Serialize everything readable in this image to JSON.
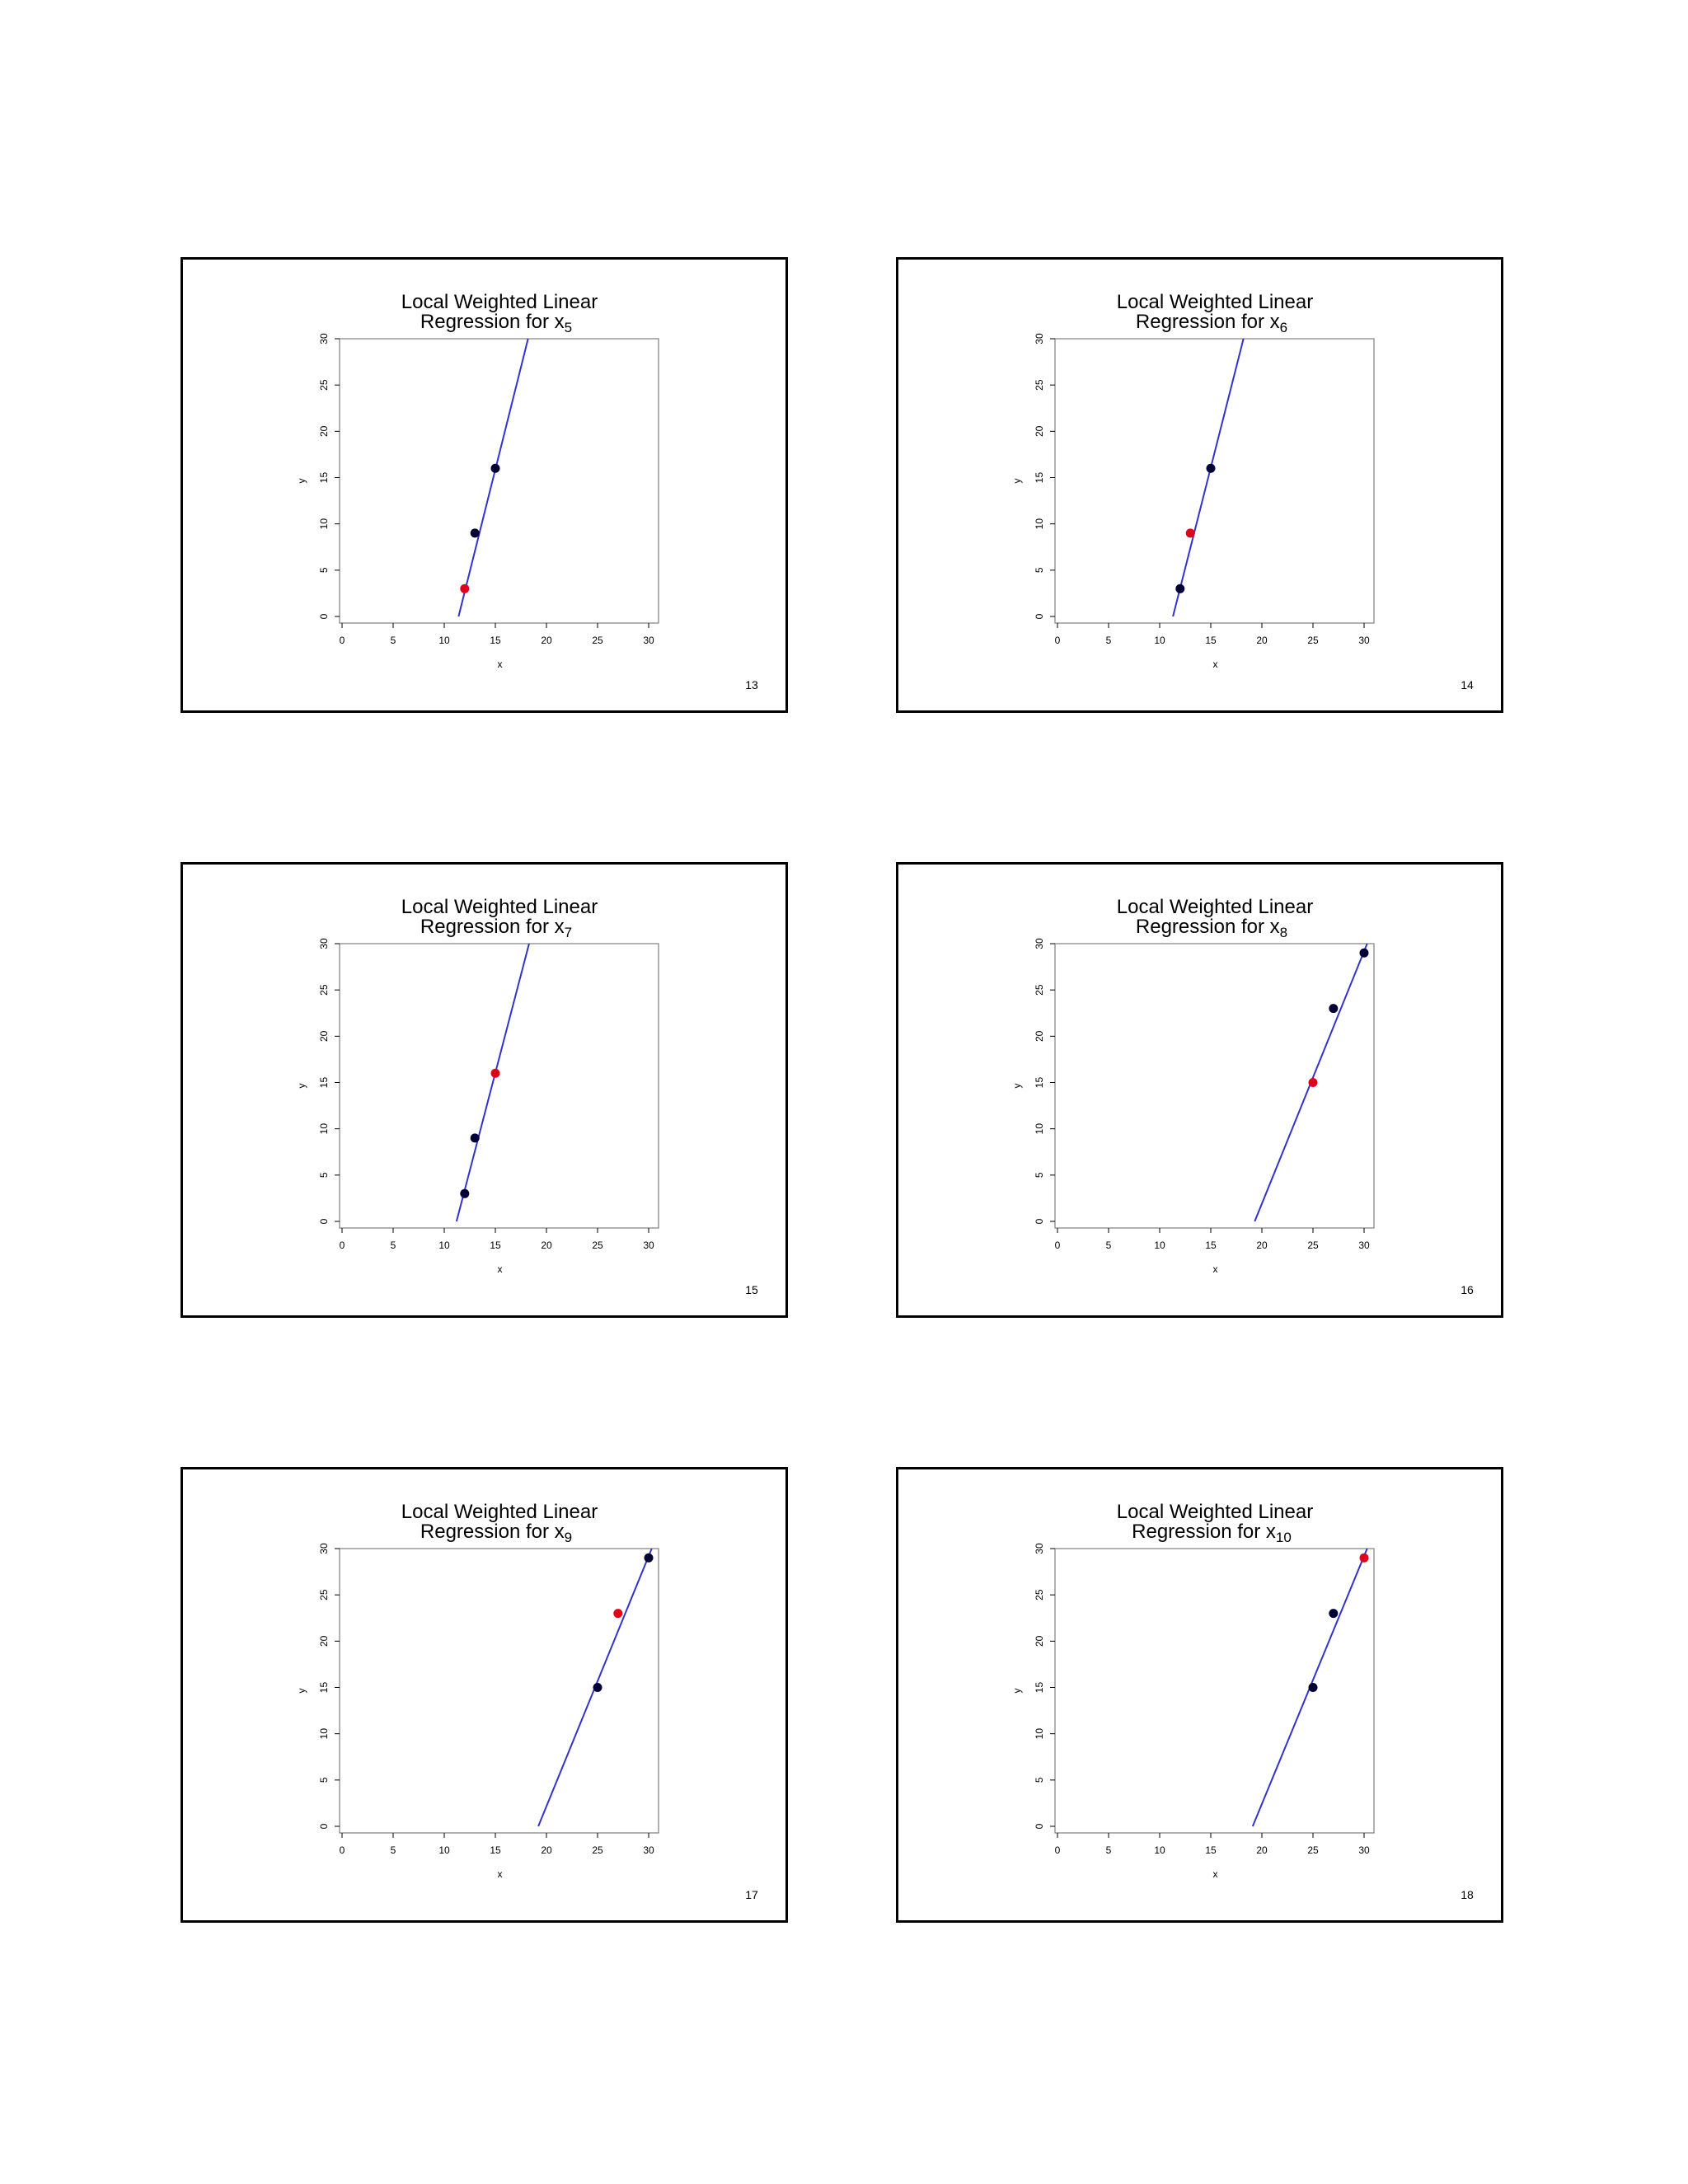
{
  "slides": [
    {
      "title_line1": "Local Weighted Linear",
      "title_line2": "Regression for x",
      "subscript": "5",
      "page": "13"
    },
    {
      "title_line1": "Local Weighted Linear",
      "title_line2": "Regression for x",
      "subscript": "6",
      "page": "14"
    },
    {
      "title_line1": "Local Weighted Linear",
      "title_line2": "Regression for x",
      "subscript": "7",
      "page": "15"
    },
    {
      "title_line1": "Local Weighted Linear",
      "title_line2": "Regression for x",
      "subscript": "8",
      "page": "16"
    },
    {
      "title_line1": "Local Weighted Linear",
      "title_line2": "Regression for x",
      "subscript": "9",
      "page": "17"
    },
    {
      "title_line1": "Local Weighted Linear",
      "title_line2": "Regression for x",
      "subscript": "10",
      "page": "18"
    }
  ],
  "colors": {
    "line": "#3333cc",
    "highlight": "#e0001b",
    "point": "#000033"
  },
  "chart_data": [
    {
      "type": "scatter",
      "title": "Local Weighted Linear Regression for x5",
      "xlabel": "x",
      "ylabel": "y",
      "xlim": [
        0,
        30
      ],
      "ylim": [
        0,
        30
      ],
      "xticks": [
        0,
        5,
        10,
        15,
        20,
        25,
        30
      ],
      "yticks": [
        0,
        5,
        10,
        15,
        20,
        25,
        30
      ],
      "points": [
        {
          "x": 12,
          "y": 3,
          "highlight": true
        },
        {
          "x": 13,
          "y": 9,
          "highlight": false
        },
        {
          "x": 15,
          "y": 16,
          "highlight": false
        }
      ],
      "fit_line": [
        [
          11.4,
          0
        ],
        [
          18.2,
          30
        ]
      ]
    },
    {
      "type": "scatter",
      "title": "Local Weighted Linear Regression for x6",
      "xlabel": "x",
      "ylabel": "y",
      "xlim": [
        0,
        30
      ],
      "ylim": [
        0,
        30
      ],
      "xticks": [
        0,
        5,
        10,
        15,
        20,
        25,
        30
      ],
      "yticks": [
        0,
        5,
        10,
        15,
        20,
        25,
        30
      ],
      "points": [
        {
          "x": 12,
          "y": 3,
          "highlight": false
        },
        {
          "x": 13,
          "y": 9,
          "highlight": true
        },
        {
          "x": 15,
          "y": 16,
          "highlight": false
        }
      ],
      "fit_line": [
        [
          11.3,
          0
        ],
        [
          18.2,
          30
        ]
      ]
    },
    {
      "type": "scatter",
      "title": "Local Weighted Linear Regression for x7",
      "xlabel": "x",
      "ylabel": "y",
      "xlim": [
        0,
        30
      ],
      "ylim": [
        0,
        30
      ],
      "xticks": [
        0,
        5,
        10,
        15,
        20,
        25,
        30
      ],
      "yticks": [
        0,
        5,
        10,
        15,
        20,
        25,
        30
      ],
      "points": [
        {
          "x": 12,
          "y": 3,
          "highlight": false
        },
        {
          "x": 13,
          "y": 9,
          "highlight": false
        },
        {
          "x": 15,
          "y": 16,
          "highlight": true
        }
      ],
      "fit_line": [
        [
          11.2,
          0
        ],
        [
          18.3,
          30
        ]
      ]
    },
    {
      "type": "scatter",
      "title": "Local Weighted Linear Regression for x8",
      "xlabel": "x",
      "ylabel": "y",
      "xlim": [
        0,
        30
      ],
      "ylim": [
        0,
        30
      ],
      "xticks": [
        0,
        5,
        10,
        15,
        20,
        25,
        30
      ],
      "yticks": [
        0,
        5,
        10,
        15,
        20,
        25,
        30
      ],
      "points": [
        {
          "x": 25,
          "y": 15,
          "highlight": true
        },
        {
          "x": 27,
          "y": 23,
          "highlight": false
        },
        {
          "x": 30,
          "y": 29,
          "highlight": false
        }
      ],
      "fit_line": [
        [
          19.3,
          0
        ],
        [
          30.3,
          30
        ]
      ]
    },
    {
      "type": "scatter",
      "title": "Local Weighted Linear Regression for x9",
      "xlabel": "x",
      "ylabel": "y",
      "xlim": [
        0,
        30
      ],
      "ylim": [
        0,
        30
      ],
      "xticks": [
        0,
        5,
        10,
        15,
        20,
        25,
        30
      ],
      "yticks": [
        0,
        5,
        10,
        15,
        20,
        25,
        30
      ],
      "points": [
        {
          "x": 25,
          "y": 15,
          "highlight": false
        },
        {
          "x": 27,
          "y": 23,
          "highlight": true
        },
        {
          "x": 30,
          "y": 29,
          "highlight": false
        }
      ],
      "fit_line": [
        [
          19.2,
          0
        ],
        [
          30.3,
          30
        ]
      ]
    },
    {
      "type": "scatter",
      "title": "Local Weighted Linear Regression for x10",
      "xlabel": "x",
      "ylabel": "y",
      "xlim": [
        0,
        30
      ],
      "ylim": [
        0,
        30
      ],
      "xticks": [
        0,
        5,
        10,
        15,
        20,
        25,
        30
      ],
      "yticks": [
        0,
        5,
        10,
        15,
        20,
        25,
        30
      ],
      "points": [
        {
          "x": 25,
          "y": 15,
          "highlight": false
        },
        {
          "x": 27,
          "y": 23,
          "highlight": false
        },
        {
          "x": 30,
          "y": 29,
          "highlight": true
        }
      ],
      "fit_line": [
        [
          19.1,
          0
        ],
        [
          30.3,
          30
        ]
      ]
    }
  ]
}
